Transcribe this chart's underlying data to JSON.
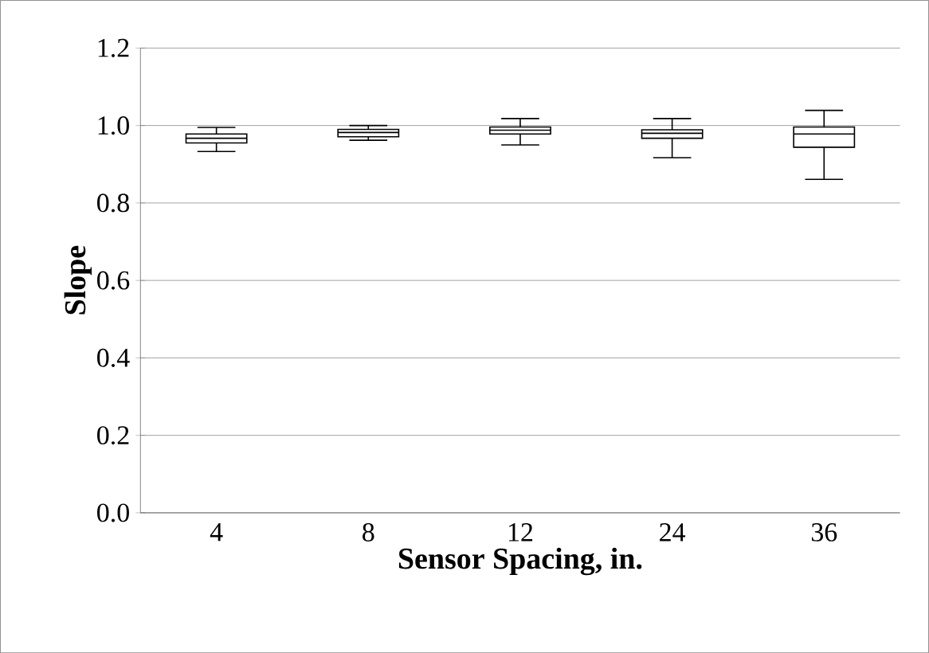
{
  "chart_data": {
    "type": "box",
    "xlabel": "Sensor Spacing, in.",
    "ylabel": "Slope",
    "categories": [
      "4",
      "8",
      "12",
      "24",
      "36"
    ],
    "boxes": [
      {
        "low": 0.933,
        "q1": 0.955,
        "median": 0.967,
        "q3": 0.978,
        "high": 0.995
      },
      {
        "low": 0.962,
        "q1": 0.971,
        "median": 0.982,
        "q3": 0.99,
        "high": 1.0
      },
      {
        "low": 0.95,
        "q1": 0.978,
        "median": 0.988,
        "q3": 0.996,
        "high": 1.018
      },
      {
        "low": 0.917,
        "q1": 0.967,
        "median": 0.98,
        "q3": 0.989,
        "high": 1.018
      },
      {
        "low": 0.861,
        "q1": 0.944,
        "median": 0.978,
        "q3": 0.996,
        "high": 1.039
      }
    ],
    "color": "#000000",
    "ylim": [
      0,
      1.2
    ],
    "yticks": [
      {
        "value": 0,
        "label": "0.0"
      },
      {
        "value": 0.2,
        "label": "0.2"
      },
      {
        "value": 0.4,
        "label": "0.4"
      },
      {
        "value": 0.6,
        "label": "0.6"
      },
      {
        "value": 0.8,
        "label": "0.8"
      },
      {
        "value": 1.0,
        "label": "1.0"
      },
      {
        "value": 1.2,
        "label": "1.2"
      }
    ],
    "grid": "y"
  }
}
